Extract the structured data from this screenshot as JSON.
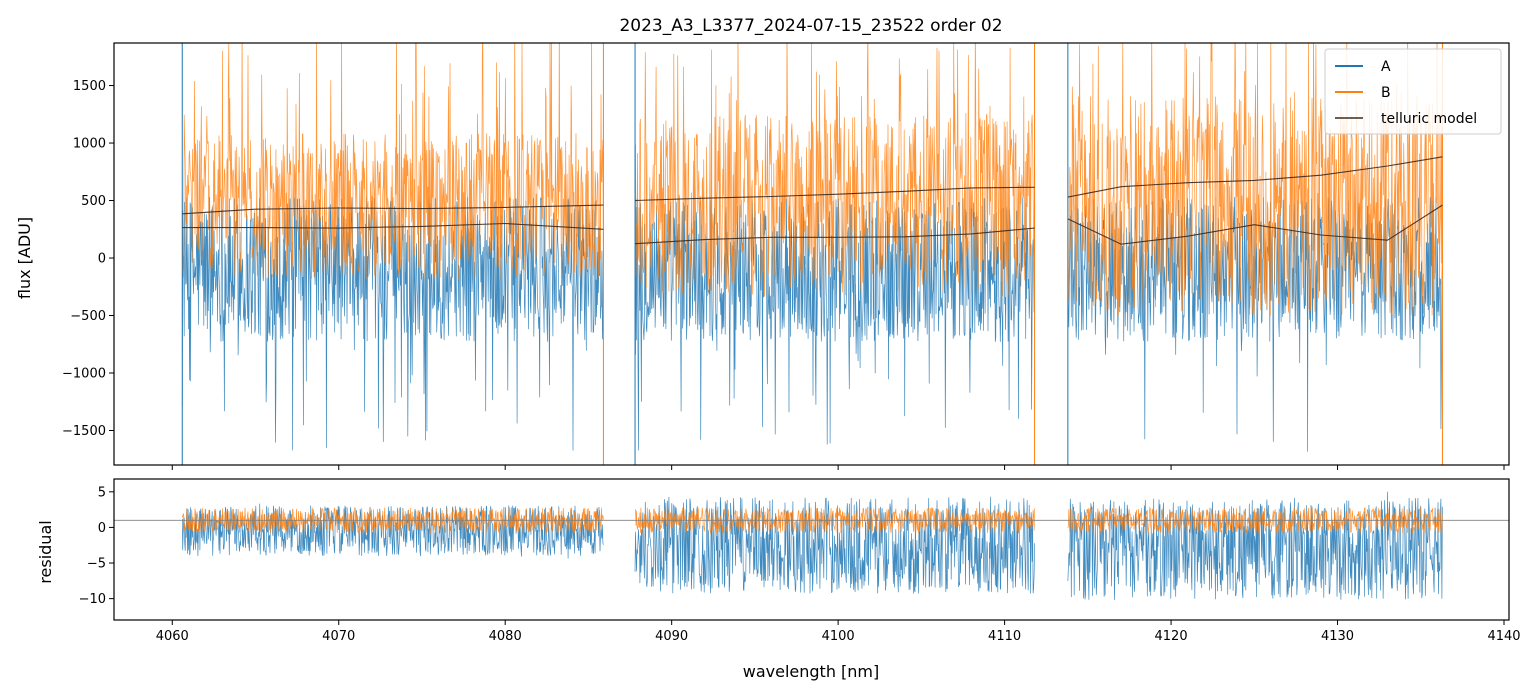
{
  "chart_data": [
    {
      "type": "line",
      "title": "2023_A3_L3377_2024-07-15_23522  order 02",
      "xlabel": "",
      "ylabel": "flux [ADU]",
      "xlim": [
        4056.5,
        4140.3
      ],
      "ylim": [
        -1800,
        1870
      ],
      "yticks": [
        -1500,
        -1000,
        -500,
        0,
        500,
        1000,
        1500
      ],
      "ytick_labels": [
        "−1500",
        "−1000",
        "−500",
        "0",
        "500",
        "1000",
        "1500"
      ],
      "legend": {
        "position": "top-right",
        "entries": [
          {
            "label": "A",
            "color": "#1f77b4"
          },
          {
            "label": "B",
            "color": "#ff7f0e"
          },
          {
            "label": "telluric model",
            "color": "#3a2a1e"
          }
        ]
      },
      "segments": [
        {
          "x_start": 4060.6,
          "x_end": 4085.9
        },
        {
          "x_start": 4087.8,
          "x_end": 4111.8
        },
        {
          "x_start": 4113.8,
          "x_end": 4136.3
        }
      ],
      "series": [
        {
          "name": "A",
          "color": "#1f77b4",
          "typical_range": [
            -800,
            600
          ],
          "note": "noisy spectrum"
        },
        {
          "name": "B",
          "color": "#ff7f0e",
          "typical_range": [
            -300,
            1200
          ],
          "note": "noisy spectrum"
        },
        {
          "name": "telluric model",
          "color": "#3a2a1e",
          "curves": [
            {
              "x": [
                4060.6,
                4065,
                4070,
                4075,
                4080,
                4085.9
              ],
              "y": [
                385,
                425,
                435,
                430,
                440,
                460
              ]
            },
            {
              "x": [
                4060.6,
                4065,
                4070,
                4075,
                4080,
                4085.9
              ],
              "y": [
                265,
                265,
                260,
                275,
                300,
                250
              ]
            },
            {
              "x": [
                4087.8,
                4092,
                4096,
                4100,
                4104,
                4108,
                4111.8
              ],
              "y": [
                500,
                520,
                535,
                555,
                580,
                610,
                615
              ]
            },
            {
              "x": [
                4087.8,
                4092,
                4096,
                4100,
                4104,
                4108,
                4111.8
              ],
              "y": [
                125,
                160,
                180,
                180,
                185,
                210,
                260
              ]
            },
            {
              "x": [
                4113.8,
                4117,
                4121,
                4125,
                4129,
                4133,
                4136.3
              ],
              "y": [
                530,
                620,
                655,
                675,
                720,
                800,
                880
              ]
            },
            {
              "x": [
                4113.8,
                4117,
                4121,
                4125,
                4129,
                4133,
                4136.3
              ],
              "y": [
                340,
                120,
                190,
                290,
                200,
                155,
                460
              ]
            }
          ]
        }
      ]
    },
    {
      "type": "line",
      "title": "",
      "xlabel": "wavelength [nm]",
      "ylabel": "residual",
      "xlim": [
        4056.5,
        4140.3
      ],
      "ylim": [
        -13,
        6.8
      ],
      "xticks": [
        4060,
        4070,
        4080,
        4090,
        4100,
        4110,
        4120,
        4130,
        4140
      ],
      "xtick_labels": [
        "4060",
        "4070",
        "4080",
        "4090",
        "4100",
        "4110",
        "4120",
        "4130",
        "4140"
      ],
      "yticks": [
        -10,
        -5,
        0,
        5
      ],
      "ytick_labels": [
        "−10",
        "−5",
        "0",
        "5"
      ],
      "reference_line": {
        "y": 1,
        "color": "#808080"
      },
      "series": [
        {
          "name": "A",
          "color": "#1f77b4",
          "segment_ranges": [
            [
              -5,
              4
            ],
            [
              -11,
              6
            ],
            [
              -12,
              6
            ]
          ]
        },
        {
          "name": "B",
          "color": "#ff7f0e",
          "segment_ranges": [
            [
              -1,
              3
            ],
            [
              -1,
              3
            ],
            [
              -1,
              3
            ]
          ]
        }
      ]
    }
  ]
}
